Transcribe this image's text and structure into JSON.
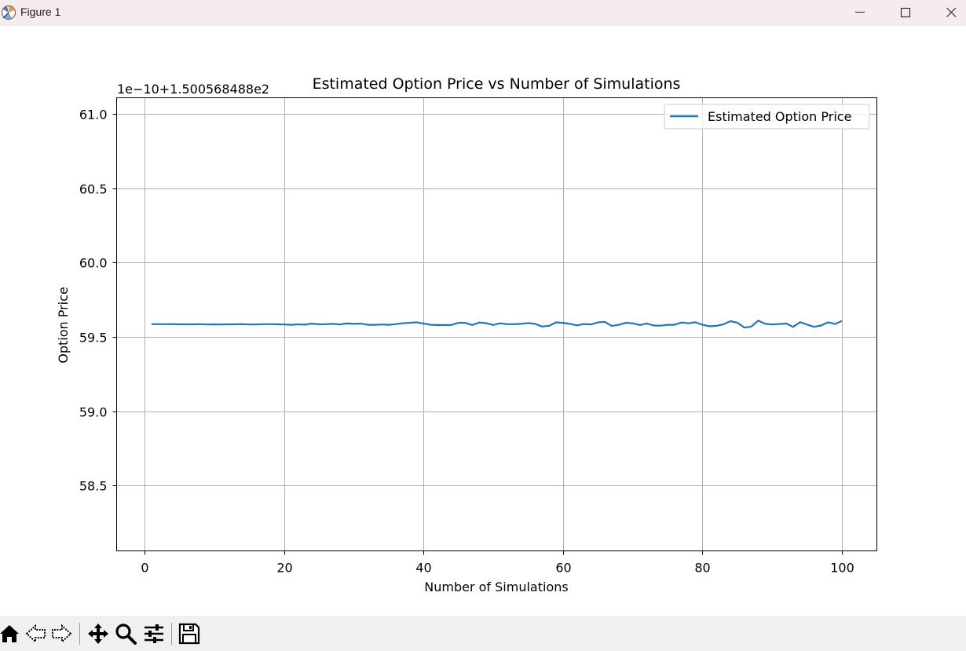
{
  "window": {
    "title": "Figure 1",
    "controls": [
      "minimize-icon",
      "maximize-icon",
      "close-icon"
    ]
  },
  "toolbar": {
    "items": [
      "home-icon",
      "back-icon",
      "forward-icon",
      "pan-icon",
      "zoom-icon",
      "configure-subplots-icon",
      "save-icon"
    ]
  },
  "chart_data": {
    "type": "line",
    "title": "Estimated Option Price vs Number of Simulations",
    "xlabel": "Number of Simulations",
    "ylabel": "Option Price",
    "offset_text": "1e−10+1.500568488e2",
    "xlim": [
      -4,
      105
    ],
    "ylim": [
      58.06,
      61.11
    ],
    "xticks": [
      0,
      20,
      40,
      60,
      80,
      100
    ],
    "yticks": [
      58.5,
      59.0,
      59.5,
      60.0,
      60.5,
      61.0
    ],
    "ytick_labels": [
      "58.5",
      "59.0",
      "59.5",
      "60.0",
      "60.5",
      "61.0"
    ],
    "grid": true,
    "legend_position": "upper right",
    "series": [
      {
        "name": "Estimated Option Price",
        "color": "#1f77b4",
        "x": [
          1,
          2,
          3,
          4,
          5,
          6,
          7,
          8,
          9,
          10,
          11,
          12,
          13,
          14,
          15,
          16,
          17,
          18,
          19,
          20,
          21,
          22,
          23,
          24,
          25,
          26,
          27,
          28,
          29,
          30,
          31,
          32,
          33,
          34,
          35,
          36,
          37,
          38,
          39,
          40,
          41,
          42,
          43,
          44,
          45,
          46,
          47,
          48,
          49,
          50,
          51,
          52,
          53,
          54,
          55,
          56,
          57,
          58,
          59,
          60,
          61,
          62,
          63,
          64,
          65,
          66,
          67,
          68,
          69,
          70,
          71,
          72,
          73,
          74,
          75,
          76,
          77,
          78,
          79,
          80,
          81,
          82,
          83,
          84,
          85,
          86,
          87,
          88,
          89,
          90,
          91,
          92,
          93,
          94,
          95,
          96,
          97,
          98,
          99,
          100
        ],
        "y": [
          59.586,
          59.586,
          59.586,
          59.586,
          59.585,
          59.585,
          59.585,
          59.586,
          59.584,
          59.585,
          59.584,
          59.585,
          59.585,
          59.586,
          59.584,
          59.584,
          59.586,
          59.586,
          59.585,
          59.584,
          59.582,
          59.585,
          59.583,
          59.59,
          59.585,
          59.586,
          59.588,
          59.584,
          59.591,
          59.588,
          59.59,
          59.582,
          59.582,
          59.584,
          59.582,
          59.586,
          59.592,
          59.595,
          59.599,
          59.591,
          59.582,
          59.58,
          59.58,
          59.581,
          59.595,
          59.595,
          59.58,
          59.597,
          59.593,
          59.581,
          59.592,
          59.586,
          59.586,
          59.588,
          59.594,
          59.588,
          59.57,
          59.575,
          59.598,
          59.595,
          59.588,
          59.578,
          59.587,
          59.584,
          59.598,
          59.602,
          59.574,
          59.582,
          59.595,
          59.592,
          59.58,
          59.591,
          59.577,
          59.576,
          59.582,
          59.582,
          59.597,
          59.592,
          59.599,
          59.582,
          59.572,
          59.575,
          59.585,
          59.606,
          59.596,
          59.563,
          59.57,
          59.61,
          59.588,
          59.584,
          59.587,
          59.591,
          59.568,
          59.6,
          59.583,
          59.568,
          59.577,
          59.599,
          59.587,
          59.608
        ]
      }
    ]
  }
}
